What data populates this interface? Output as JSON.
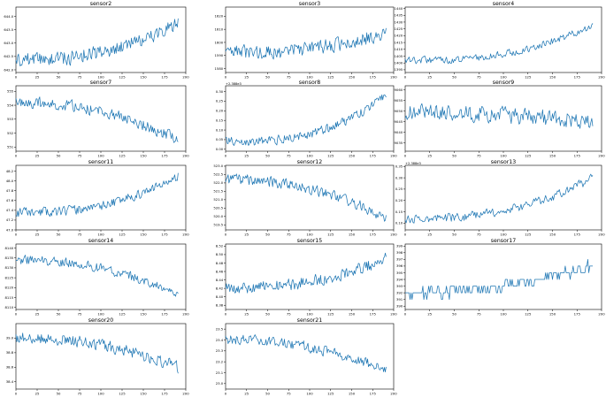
{
  "figure": {
    "line_color": "#1f77b4",
    "axis_color": "#000000",
    "background": "#ffffff"
  },
  "chart_data": [
    {
      "type": "line",
      "title": "sensor2",
      "offset_label": "",
      "xlim": [
        0,
        200
      ],
      "x_ticks": [
        0,
        25,
        50,
        75,
        100,
        125,
        150,
        175,
        200
      ],
      "ylim": [
        641.9,
        644.35
      ],
      "y_ticks": [
        642.0,
        642.5,
        643.0,
        643.5,
        644.0
      ],
      "y_tick_labels": [
        "642.0",
        "642.5",
        "643.0",
        "643.5",
        "644.0"
      ],
      "n": 192,
      "start": 642.35,
      "end": 643.75,
      "noise": 0.35,
      "curve": 2.2,
      "seed": 2
    },
    {
      "type": "line",
      "title": "sensor3",
      "offset_label": "",
      "xlim": [
        0,
        200
      ],
      "x_ticks": [
        0,
        25,
        50,
        75,
        100,
        125,
        150,
        175,
        200
      ],
      "ylim": [
        1577,
        1627
      ],
      "y_ticks": [
        1580,
        1590,
        1600,
        1610,
        1620
      ],
      "y_tick_labels": [
        "1580",
        "1590",
        "1600",
        "1610",
        "1620"
      ],
      "n": 192,
      "start": 1592,
      "end": 1608,
      "noise": 7,
      "curve": 2.5,
      "seed": 3
    },
    {
      "type": "line",
      "title": "sensor4",
      "offset_label": "",
      "xlim": [
        0,
        200
      ],
      "x_ticks": [
        0,
        25,
        50,
        75,
        100,
        125,
        150,
        175,
        200
      ],
      "ylim": [
        1393,
        1441
      ],
      "y_ticks": [
        1395,
        1400,
        1405,
        1410,
        1415,
        1420,
        1425,
        1430,
        1435,
        1440
      ],
      "y_tick_labels": [
        "1395",
        "1400",
        "1405",
        "1410",
        "1415",
        "1420",
        "1425",
        "1430",
        "1435",
        "1440"
      ],
      "n": 192,
      "start": 1402,
      "end": 1428,
      "noise": 3.5,
      "curve": 2.6,
      "seed": 4
    },
    {
      "type": "line",
      "title": "sensor7",
      "offset_label": "",
      "xlim": [
        0,
        200
      ],
      "x_ticks": [
        0,
        25,
        50,
        75,
        100,
        125,
        150,
        175,
        200
      ],
      "ylim": [
        550.7,
        555.4
      ],
      "y_ticks": [
        551,
        552,
        553,
        554,
        555
      ],
      "y_tick_labels": [
        "551",
        "552",
        "553",
        "554",
        "555"
      ],
      "n": 192,
      "start": 554.2,
      "end": 551.5,
      "noise": 0.5,
      "curve": 2.2,
      "seed": 7
    },
    {
      "type": "line",
      "title": "sensor8",
      "offset_label": "+2.388e3",
      "xlim": [
        0,
        200
      ],
      "x_ticks": [
        0,
        25,
        50,
        75,
        100,
        125,
        150,
        175,
        200
      ],
      "ylim": [
        -0.01,
        0.33
      ],
      "y_ticks": [
        0.0,
        0.05,
        0.1,
        0.15,
        0.2,
        0.25,
        0.3
      ],
      "y_tick_labels": [
        "0.00",
        "0.05",
        "0.10",
        "0.15",
        "0.20",
        "0.25",
        "0.30"
      ],
      "n": 192,
      "start": 0.04,
      "end": 0.28,
      "noise": 0.03,
      "curve": 2.8,
      "seed": 8
    },
    {
      "type": "line",
      "title": "sensor9",
      "offset_label": "",
      "xlim": [
        0,
        200
      ],
      "x_ticks": [
        0,
        25,
        50,
        75,
        100,
        125,
        150,
        175,
        200
      ],
      "ylim": [
        9031,
        9062
      ],
      "y_ticks": [
        9035,
        9040,
        9045,
        9050,
        9055,
        9060
      ],
      "y_tick_labels": [
        "9035",
        "9040",
        "9045",
        "9050",
        "9055",
        "9060"
      ],
      "n": 192,
      "start": 9050,
      "end": 9045,
      "noise": 5,
      "curve": 1.4,
      "seed": 9
    },
    {
      "type": "line",
      "title": "sensor11",
      "offset_label": "",
      "xlim": [
        0,
        200
      ],
      "x_ticks": [
        0,
        25,
        50,
        75,
        100,
        125,
        150,
        175,
        200
      ],
      "ylim": [
        47.0,
        48.32
      ],
      "y_ticks": [
        47.0,
        47.2,
        47.4,
        47.6,
        47.8,
        48.0,
        48.2
      ],
      "y_tick_labels": [
        "47.0",
        "47.2",
        "47.4",
        "47.6",
        "47.8",
        "48.0",
        "48.2"
      ],
      "n": 192,
      "start": 47.35,
      "end": 48.1,
      "noise": 0.12,
      "curve": 2.5,
      "seed": 11
    },
    {
      "type": "line",
      "title": "sensor12",
      "offset_label": "",
      "xlim": [
        0,
        200
      ],
      "x_ticks": [
        0,
        25,
        50,
        75,
        100,
        125,
        150,
        175,
        200
      ],
      "ylim": [
        519.2,
        523.05
      ],
      "y_ticks": [
        519.5,
        520.0,
        520.5,
        521.0,
        521.5,
        522.0,
        522.5,
        523.0
      ],
      "y_tick_labels": [
        "519.5",
        "520.0",
        "520.5",
        "521.0",
        "521.5",
        "522.0",
        "522.5",
        "523.0"
      ],
      "n": 192,
      "start": 522.2,
      "end": 519.9,
      "noise": 0.4,
      "curve": 2.2,
      "seed": 12
    },
    {
      "type": "line",
      "title": "sensor13",
      "offset_label": "+2.388e3",
      "xlim": [
        0,
        200
      ],
      "x_ticks": [
        0,
        25,
        50,
        75,
        100,
        125,
        150,
        175,
        200
      ],
      "ylim": [
        0.07,
        0.355
      ],
      "y_ticks": [
        0.1,
        0.15,
        0.2,
        0.25,
        0.3,
        0.35
      ],
      "y_tick_labels": [
        "0.10",
        "0.15",
        "0.20",
        "0.25",
        "0.30",
        "0.35"
      ],
      "n": 192,
      "start": 0.12,
      "end": 0.3,
      "noise": 0.025,
      "curve": 2.5,
      "seed": 13
    },
    {
      "type": "line",
      "title": "sensor14",
      "offset_label": "",
      "xlim": [
        0,
        200
      ],
      "x_ticks": [
        0,
        25,
        50,
        75,
        100,
        125,
        150,
        175,
        200
      ],
      "ylim": [
        8109,
        8142
      ],
      "y_ticks": [
        8110,
        8115,
        8120,
        8125,
        8130,
        8135,
        8140
      ],
      "y_tick_labels": [
        "8110",
        "8115",
        "8120",
        "8125",
        "8130",
        "8135",
        "8140"
      ],
      "n": 192,
      "start": 8134,
      "end": 8116,
      "noise": 3,
      "curve": 2.2,
      "seed": 14
    },
    {
      "type": "line",
      "title": "sensor15",
      "offset_label": "",
      "xlim": [
        0,
        200
      ],
      "x_ticks": [
        0,
        25,
        50,
        75,
        100,
        125,
        150,
        175,
        200
      ],
      "ylim": [
        8.37,
        8.525
      ],
      "y_ticks": [
        8.38,
        8.4,
        8.42,
        8.44,
        8.46,
        8.48,
        8.5,
        8.52
      ],
      "y_tick_labels": [
        "8.38",
        "8.40",
        "8.42",
        "8.44",
        "8.46",
        "8.48",
        "8.50",
        "8.52"
      ],
      "n": 192,
      "start": 8.42,
      "end": 8.49,
      "noise": 0.018,
      "curve": 2.2,
      "seed": 15
    },
    {
      "type": "line",
      "title": "sensor17",
      "offset_label": "",
      "xlim": [
        0,
        200
      ],
      "x_ticks": [
        0,
        25,
        50,
        75,
        100,
        125,
        150,
        175,
        200
      ],
      "ylim": [
        389.5,
        399.3
      ],
      "y_ticks": [
        390,
        391,
        392,
        393,
        394,
        395,
        396,
        397,
        398,
        399
      ],
      "y_tick_labels": [
        "390",
        "391",
        "392",
        "393",
        "394",
        "395",
        "396",
        "397",
        "398",
        "399"
      ],
      "n": 192,
      "start": 392,
      "end": 396,
      "noise": 1.0,
      "curve": 2.0,
      "seed": 17,
      "integer": true
    },
    {
      "type": "line",
      "title": "sensor20",
      "offset_label": "",
      "xlim": [
        0,
        200
      ],
      "x_ticks": [
        0,
        25,
        50,
        75,
        100,
        125,
        150,
        175,
        200
      ],
      "ylim": [
        38.3,
        39.2
      ],
      "y_ticks": [
        38.4,
        38.6,
        38.8,
        39.0
      ],
      "y_tick_labels": [
        "38.4",
        "38.6",
        "38.8",
        "39.0"
      ],
      "n": 192,
      "start": 39.0,
      "end": 38.6,
      "noise": 0.1,
      "curve": 2.2,
      "seed": 20
    },
    {
      "type": "line",
      "title": "sensor21",
      "offset_label": "",
      "xlim": [
        0,
        200
      ],
      "x_ticks": [
        0,
        25,
        50,
        75,
        100,
        125,
        150,
        175,
        200
      ],
      "ylim": [
        22.95,
        23.55
      ],
      "y_ticks": [
        23.0,
        23.1,
        23.2,
        23.3,
        23.4,
        23.5
      ],
      "y_tick_labels": [
        "23.0",
        "23.1",
        "23.2",
        "23.3",
        "23.4",
        "23.5"
      ],
      "n": 192,
      "start": 23.4,
      "end": 23.12,
      "noise": 0.06,
      "curve": 2.2,
      "seed": 21
    }
  ]
}
